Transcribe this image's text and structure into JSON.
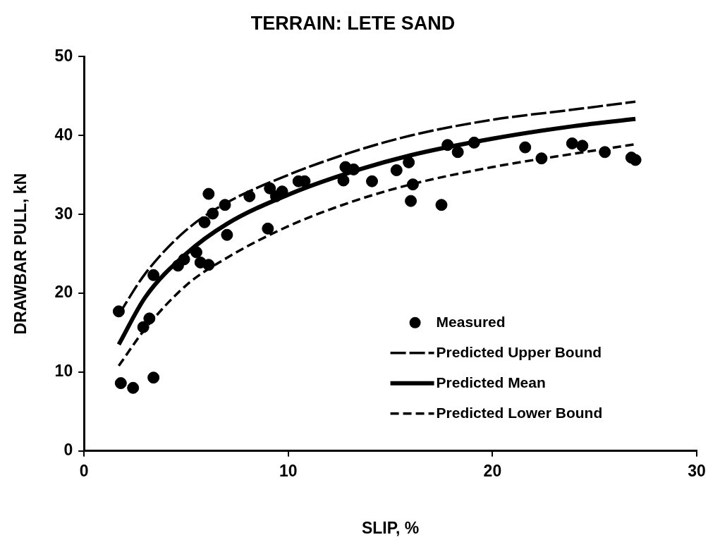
{
  "chart_data": {
    "type": "scatter",
    "title": "TERRAIN: LETE SAND",
    "xlabel": "SLIP, %",
    "ylabel": "DRAWBAR PULL, kN",
    "xlim": [
      0,
      30
    ],
    "xticks": [
      0,
      10,
      20,
      30
    ],
    "ylim": [
      0,
      50
    ],
    "yticks": [
      0,
      10,
      20,
      30,
      40,
      50
    ],
    "grid": false,
    "legend": "bottom right",
    "series": [
      {
        "name": "Measured",
        "marker": "circle",
        "color": "#000000",
        "x": [
          1.7,
          1.8,
          2.4,
          2.9,
          3.2,
          3.4,
          3.4,
          4.6,
          4.9,
          5.5,
          5.7,
          5.9,
          6.1,
          6.1,
          6.3,
          6.9,
          7.0,
          8.1,
          9.0,
          9.1,
          9.4,
          9.7,
          10.5,
          10.8,
          12.7,
          12.8,
          13.2,
          14.1,
          15.3,
          15.9,
          16.0,
          16.1,
          17.5,
          17.8,
          18.3,
          19.1,
          21.6,
          22.4,
          23.9,
          24.4,
          25.5,
          26.8,
          27.0
        ],
        "values": [
          17.7,
          8.6,
          8.0,
          15.7,
          16.8,
          9.3,
          22.3,
          23.5,
          24.3,
          25.2,
          23.9,
          29.0,
          32.6,
          23.6,
          30.1,
          31.2,
          27.4,
          32.3,
          28.2,
          33.3,
          32.3,
          32.9,
          34.2,
          34.2,
          34.3,
          36.0,
          35.7,
          34.2,
          35.6,
          36.6,
          31.7,
          33.8,
          31.2,
          38.8,
          37.9,
          39.1,
          38.5,
          37.1,
          39.0,
          38.7,
          37.9,
          37.2,
          36.9
        ]
      },
      {
        "name": "Predicted Upper Bound",
        "type": "line",
        "marker": "none",
        "line_style": "dashed",
        "color": "#000000",
        "x": [
          1.7,
          3,
          5,
          7,
          10,
          13,
          16,
          20,
          24,
          27
        ],
        "values": [
          17.3,
          22.5,
          28,
          31.5,
          35,
          37.8,
          40,
          42,
          43.3,
          44.3
        ]
      },
      {
        "name": "Predicted Mean",
        "type": "line",
        "marker": "none",
        "line_style": "solid",
        "color": "#000000",
        "x": [
          1.7,
          3,
          5,
          7,
          10,
          13,
          16,
          20,
          24,
          27
        ],
        "values": [
          13.5,
          19.5,
          25,
          28.8,
          32.5,
          35.3,
          37.5,
          39.6,
          41.2,
          42.1
        ]
      },
      {
        "name": "Predicted Lower Bound",
        "type": "line",
        "marker": "none",
        "line_style": "dotted",
        "color": "#000000",
        "x": [
          1.7,
          3,
          5,
          7,
          10,
          13,
          16,
          20,
          24,
          27
        ],
        "values": [
          10.8,
          15.5,
          21,
          24.5,
          28.5,
          31.5,
          33.8,
          36,
          37.7,
          38.9
        ]
      }
    ]
  }
}
